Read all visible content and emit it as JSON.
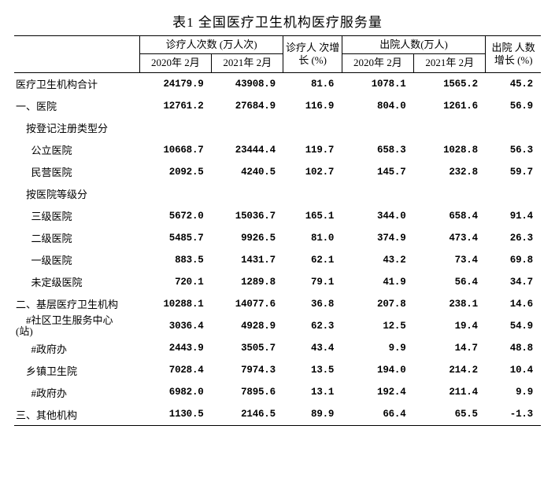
{
  "title": "表1 全国医疗卫生机构医疗服务量",
  "header": {
    "grp1": "诊疗人次数\n(万人次)",
    "grp2": "诊疗人\n次增长\n(%)",
    "grp3": "出院人数(万人)",
    "grp4": "出院\n人数\n增长\n(%)",
    "c1": "2020年\n2月",
    "c2": "2021年\n2月",
    "c3": "2020年\n2月",
    "c4": "2021年\n2月"
  },
  "rows": [
    {
      "label": "医疗卫生机构合计",
      "v": [
        "24179.9",
        "43908.9",
        "81.6",
        "1078.1",
        "1565.2",
        "45.2"
      ]
    },
    {
      "label": "一、医院",
      "v": [
        "12761.2",
        "27684.9",
        "116.9",
        "804.0",
        "1261.6",
        "56.9"
      ]
    },
    {
      "label": "    按登记注册类型分",
      "v": [
        "",
        "",
        "",
        "",
        "",
        ""
      ]
    },
    {
      "label": "      公立医院",
      "v": [
        "10668.7",
        "23444.4",
        "119.7",
        "658.3",
        "1028.8",
        "56.3"
      ]
    },
    {
      "label": "      民营医院",
      "v": [
        "2092.5",
        "4240.5",
        "102.7",
        "145.7",
        "232.8",
        "59.7"
      ]
    },
    {
      "label": "    按医院等级分",
      "v": [
        "",
        "",
        "",
        "",
        "",
        ""
      ]
    },
    {
      "label": "      三级医院",
      "v": [
        "5672.0",
        "15036.7",
        "165.1",
        "344.0",
        "658.4",
        "91.4"
      ]
    },
    {
      "label": "      二级医院",
      "v": [
        "5485.7",
        "9926.5",
        "81.0",
        "374.9",
        "473.4",
        "26.3"
      ]
    },
    {
      "label": "      一级医院",
      "v": [
        "883.5",
        "1431.7",
        "62.1",
        "43.2",
        "73.4",
        "69.8"
      ]
    },
    {
      "label": "      未定级医院",
      "v": [
        "720.1",
        "1289.8",
        "79.1",
        "41.9",
        "56.4",
        "34.7"
      ]
    },
    {
      "label": "二、基层医疗卫生机构",
      "v": [
        "10288.1",
        "14077.6",
        "36.8",
        "207.8",
        "238.1",
        "14.6"
      ]
    },
    {
      "label": "    #社区卫生服务中心\n(站)",
      "v": [
        "3036.4",
        "4928.9",
        "62.3",
        "12.5",
        "19.4",
        "54.9"
      ],
      "twoLine": true
    },
    {
      "label": "      #政府办",
      "v": [
        "2443.9",
        "3505.7",
        "43.4",
        "9.9",
        "14.7",
        "48.8"
      ]
    },
    {
      "label": "    乡镇卫生院",
      "v": [
        "7028.4",
        "7974.3",
        "13.5",
        "194.0",
        "214.2",
        "10.4"
      ]
    },
    {
      "label": "      #政府办",
      "v": [
        "6982.0",
        "7895.6",
        "13.1",
        "192.4",
        "211.4",
        "9.9"
      ]
    },
    {
      "label": "三、其他机构",
      "v": [
        "1130.5",
        "2146.5",
        "89.9",
        "66.4",
        "65.5",
        "-1.3"
      ]
    }
  ]
}
